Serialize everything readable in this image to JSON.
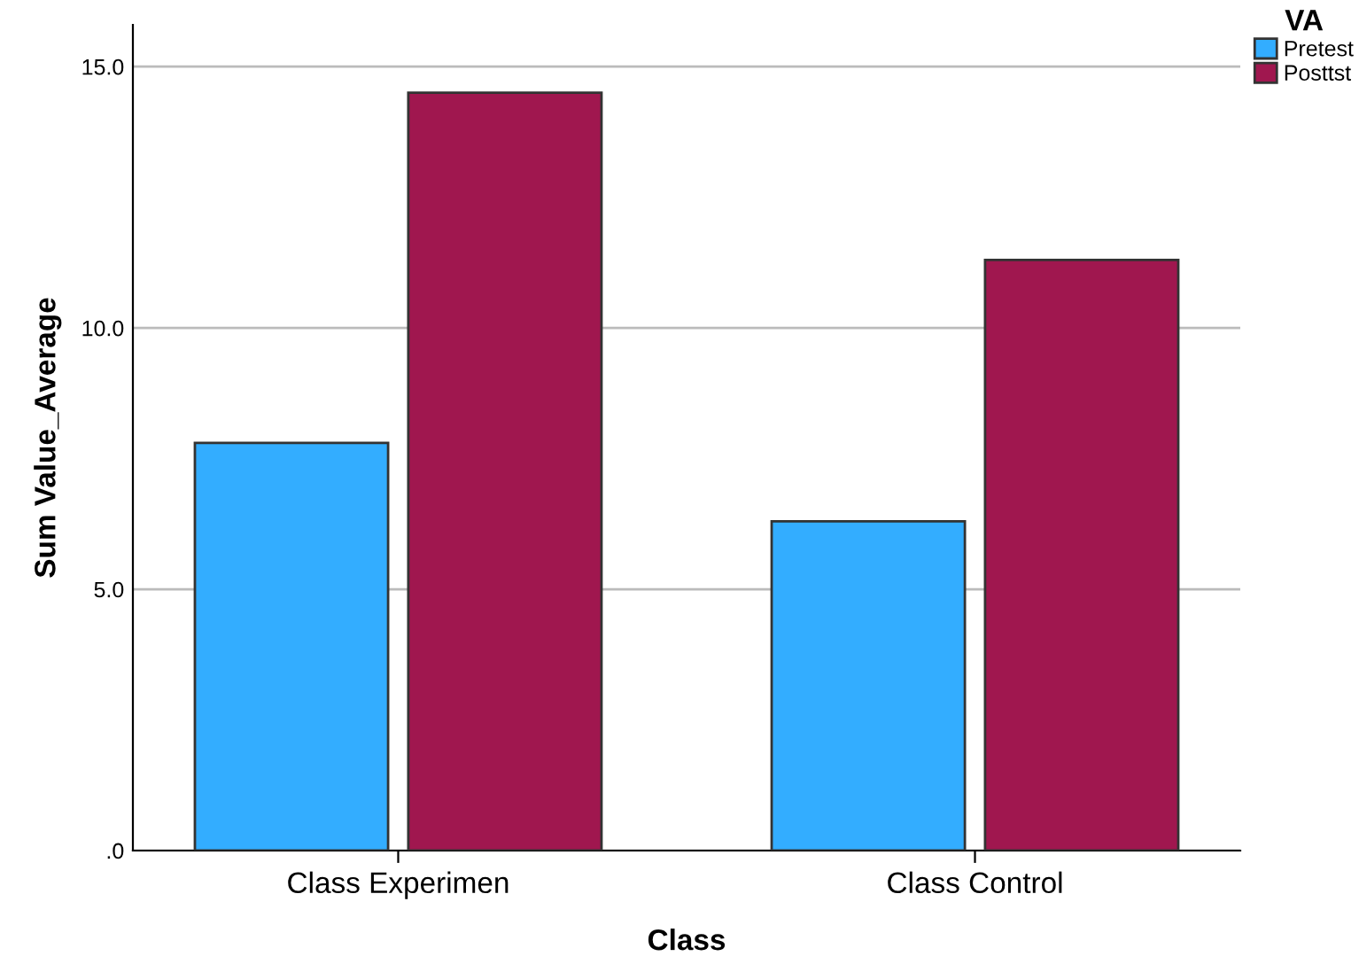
{
  "chart_data": {
    "type": "bar",
    "xlabel": "Class",
    "ylabel": "Sum Value_Average",
    "legend_title": "VA",
    "categories": [
      "Class Experimen",
      "Class Control"
    ],
    "series": [
      {
        "name": "Pretest",
        "color": "#33adff",
        "values": [
          7.8,
          6.3
        ]
      },
      {
        "name": "Posttst",
        "color": "#a0174f",
        "values": [
          14.5,
          11.3
        ]
      }
    ],
    "ylim": [
      0,
      15.8
    ],
    "yticks": [
      {
        "value": 0,
        "label": ".0"
      },
      {
        "value": 5,
        "label": "5.0"
      },
      {
        "value": 10,
        "label": "10.0"
      },
      {
        "value": 15,
        "label": "15.0"
      }
    ],
    "grid": "y",
    "legend": "top right"
  }
}
